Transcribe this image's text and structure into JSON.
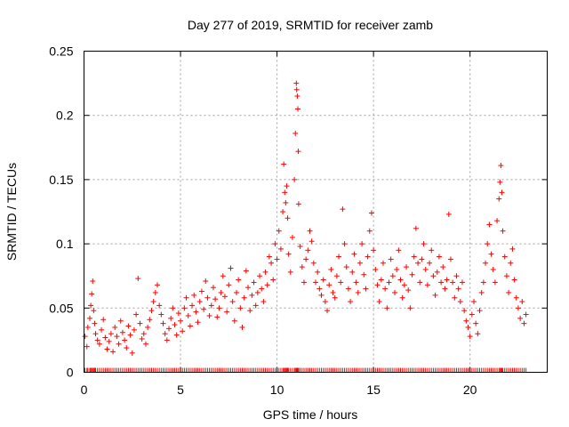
{
  "chart_data": {
    "type": "scatter",
    "title": "Day 277 of 2019, SRMTID for receiver zamb",
    "xlabel": "GPS time / hours",
    "ylabel": "SRMTID / TECUs",
    "xlim": [
      0,
      24
    ],
    "ylim": [
      0,
      0.25
    ],
    "x_ticks": [
      0,
      5,
      10,
      15,
      20
    ],
    "x_tick_labels": [
      "0",
      "5",
      "10",
      "15",
      "20"
    ],
    "y_ticks": [
      0,
      0.05,
      0.1,
      0.15,
      0.2,
      0.25
    ],
    "y_tick_labels": [
      "0",
      "0.05",
      "0.1",
      "0.15",
      "0.2",
      "0.25"
    ],
    "grid": true,
    "marker": "plus",
    "series": [
      {
        "name": "SRMTID",
        "color": "#ff0000",
        "points_xy": [
          [
            0.05,
            0.028
          ],
          [
            0.15,
            0.02
          ],
          [
            0.2,
            0.035
          ],
          [
            0.3,
            0.042
          ],
          [
            0.35,
            0.052
          ],
          [
            0.4,
            0.061
          ],
          [
            0.45,
            0.071
          ],
          [
            0.5,
            0.048
          ],
          [
            0.55,
            0.038
          ],
          [
            0.6,
            0.03
          ],
          [
            0.7,
            0.025
          ],
          [
            0.8,
            0.022
          ],
          [
            0.9,
            0.033
          ],
          [
            1.0,
            0.041
          ],
          [
            1.1,
            0.027
          ],
          [
            1.2,
            0.018
          ],
          [
            1.3,
            0.024
          ],
          [
            1.4,
            0.03
          ],
          [
            1.5,
            0.016
          ],
          [
            1.6,
            0.035
          ],
          [
            1.7,
            0.028
          ],
          [
            1.8,
            0.022
          ],
          [
            1.9,
            0.04
          ],
          [
            2.0,
            0.031
          ],
          [
            2.1,
            0.025
          ],
          [
            2.2,
            0.019
          ],
          [
            2.3,
            0.036
          ],
          [
            2.4,
            0.029
          ],
          [
            2.5,
            0.015
          ],
          [
            2.6,
            0.033
          ],
          [
            2.7,
            0.045
          ],
          [
            2.8,
            0.073
          ],
          [
            2.9,
            0.038
          ],
          [
            3.0,
            0.026
          ],
          [
            3.1,
            0.03
          ],
          [
            3.2,
            0.022
          ],
          [
            3.3,
            0.035
          ],
          [
            3.4,
            0.041
          ],
          [
            3.5,
            0.048
          ],
          [
            3.6,
            0.055
          ],
          [
            3.7,
            0.062
          ],
          [
            3.8,
            0.068
          ],
          [
            3.9,
            0.052
          ],
          [
            4.0,
            0.045
          ],
          [
            4.1,
            0.038
          ],
          [
            4.2,
            0.03
          ],
          [
            4.3,
            0.025
          ],
          [
            4.4,
            0.034
          ],
          [
            4.5,
            0.042
          ],
          [
            4.6,
            0.05
          ],
          [
            4.7,
            0.037
          ],
          [
            4.8,
            0.029
          ],
          [
            4.9,
            0.046
          ],
          [
            5.0,
            0.04
          ],
          [
            5.1,
            0.032
          ],
          [
            5.2,
            0.05
          ],
          [
            5.3,
            0.058
          ],
          [
            5.4,
            0.044
          ],
          [
            5.5,
            0.036
          ],
          [
            5.6,
            0.052
          ],
          [
            5.7,
            0.06
          ],
          [
            5.8,
            0.047
          ],
          [
            5.9,
            0.039
          ],
          [
            6.0,
            0.055
          ],
          [
            6.1,
            0.063
          ],
          [
            6.2,
            0.049
          ],
          [
            6.3,
            0.071
          ],
          [
            6.4,
            0.058
          ],
          [
            6.5,
            0.044
          ],
          [
            6.6,
            0.052
          ],
          [
            6.7,
            0.066
          ],
          [
            6.8,
            0.057
          ],
          [
            6.9,
            0.043
          ],
          [
            7.0,
            0.05
          ],
          [
            7.1,
            0.062
          ],
          [
            7.2,
            0.075
          ],
          [
            7.3,
            0.059
          ],
          [
            7.4,
            0.047
          ],
          [
            7.5,
            0.068
          ],
          [
            7.6,
            0.081
          ],
          [
            7.7,
            0.055
          ],
          [
            7.8,
            0.04
          ],
          [
            7.9,
            0.062
          ],
          [
            8.0,
            0.072
          ],
          [
            8.1,
            0.05
          ],
          [
            8.2,
            0.035
          ],
          [
            8.3,
            0.058
          ],
          [
            8.4,
            0.079
          ],
          [
            8.5,
            0.066
          ],
          [
            8.6,
            0.048
          ],
          [
            8.7,
            0.06
          ],
          [
            8.8,
            0.07
          ],
          [
            8.9,
            0.052
          ],
          [
            9.0,
            0.062
          ],
          [
            9.1,
            0.075
          ],
          [
            9.2,
            0.065
          ],
          [
            9.3,
            0.055
          ],
          [
            9.4,
            0.078
          ],
          [
            9.5,
            0.068
          ],
          [
            9.6,
            0.09
          ],
          [
            9.7,
            0.085
          ],
          [
            9.8,
            0.072
          ],
          [
            9.9,
            0.1
          ],
          [
            10.0,
            0.088
          ],
          [
            10.1,
            0.11
          ],
          [
            10.2,
            0.096
          ],
          [
            10.3,
            0.125
          ],
          [
            10.35,
            0.162
          ],
          [
            10.4,
            0.14
          ],
          [
            10.45,
            0.132
          ],
          [
            10.5,
            0.145
          ],
          [
            10.55,
            0.12
          ],
          [
            10.6,
            0.092
          ],
          [
            10.7,
            0.078
          ],
          [
            10.8,
            0.105
          ],
          [
            10.9,
            0.15
          ],
          [
            10.95,
            0.186
          ],
          [
            11.0,
            0.225
          ],
          [
            11.02,
            0.22
          ],
          [
            11.05,
            0.215
          ],
          [
            11.08,
            0.205
          ],
          [
            11.1,
            0.172
          ],
          [
            11.12,
            0.131
          ],
          [
            11.2,
            0.098
          ],
          [
            11.3,
            0.082
          ],
          [
            11.4,
            0.07
          ],
          [
            11.5,
            0.088
          ],
          [
            11.6,
            0.095
          ],
          [
            11.7,
            0.11
          ],
          [
            11.8,
            0.102
          ],
          [
            11.9,
            0.085
          ],
          [
            12.0,
            0.07
          ],
          [
            12.1,
            0.078
          ],
          [
            12.2,
            0.065
          ],
          [
            12.3,
            0.06
          ],
          [
            12.4,
            0.072
          ],
          [
            12.5,
            0.055
          ],
          [
            12.6,
            0.048
          ],
          [
            12.7,
            0.068
          ],
          [
            12.8,
            0.08
          ],
          [
            12.9,
            0.062
          ],
          [
            13.0,
            0.058
          ],
          [
            13.1,
            0.075
          ],
          [
            13.2,
            0.09
          ],
          [
            13.3,
            0.07
          ],
          [
            13.4,
            0.127
          ],
          [
            13.5,
            0.1
          ],
          [
            13.6,
            0.082
          ],
          [
            13.7,
            0.065
          ],
          [
            13.8,
            0.055
          ],
          [
            13.9,
            0.078
          ],
          [
            14.0,
            0.092
          ],
          [
            14.1,
            0.07
          ],
          [
            14.2,
            0.062
          ],
          [
            14.3,
            0.085
          ],
          [
            14.4,
            0.1
          ],
          [
            14.5,
            0.076
          ],
          [
            14.6,
            0.065
          ],
          [
            14.7,
            0.09
          ],
          [
            14.8,
            0.11
          ],
          [
            14.9,
            0.124
          ],
          [
            15.0,
            0.095
          ],
          [
            15.1,
            0.08
          ],
          [
            15.2,
            0.068
          ],
          [
            15.3,
            0.055
          ],
          [
            15.4,
            0.072
          ],
          [
            15.5,
            0.085
          ],
          [
            15.6,
            0.065
          ],
          [
            15.7,
            0.05
          ],
          [
            15.8,
            0.07
          ],
          [
            15.9,
            0.088
          ],
          [
            16.0,
            0.075
          ],
          [
            16.1,
            0.062
          ],
          [
            16.2,
            0.08
          ],
          [
            16.3,
            0.095
          ],
          [
            16.4,
            0.072
          ],
          [
            16.5,
            0.058
          ],
          [
            16.6,
            0.068
          ],
          [
            16.7,
            0.082
          ],
          [
            16.8,
            0.064
          ],
          [
            16.9,
            0.05
          ],
          [
            17.0,
            0.076
          ],
          [
            17.1,
            0.09
          ],
          [
            17.2,
            0.112
          ],
          [
            17.3,
            0.085
          ],
          [
            17.4,
            0.07
          ],
          [
            17.5,
            0.088
          ],
          [
            17.6,
            0.1
          ],
          [
            17.7,
            0.08
          ],
          [
            17.8,
            0.068
          ],
          [
            17.9,
            0.085
          ],
          [
            18.0,
            0.095
          ],
          [
            18.1,
            0.075
          ],
          [
            18.2,
            0.06
          ],
          [
            18.3,
            0.078
          ],
          [
            18.4,
            0.09
          ],
          [
            18.5,
            0.07
          ],
          [
            18.6,
            0.082
          ],
          [
            18.7,
            0.065
          ],
          [
            18.8,
            0.072
          ],
          [
            18.9,
            0.123
          ],
          [
            19.0,
            0.088
          ],
          [
            19.1,
            0.07
          ],
          [
            19.2,
            0.058
          ],
          [
            19.3,
            0.075
          ],
          [
            19.4,
            0.065
          ],
          [
            19.5,
            0.055
          ],
          [
            19.6,
            0.07
          ],
          [
            19.7,
            0.048
          ],
          [
            19.8,
            0.04
          ],
          [
            19.9,
            0.035
          ],
          [
            20.0,
            0.028
          ],
          [
            20.1,
            0.045
          ],
          [
            20.2,
            0.055
          ],
          [
            20.3,
            0.038
          ],
          [
            20.4,
            0.03
          ],
          [
            20.5,
            0.048
          ],
          [
            20.6,
            0.062
          ],
          [
            20.7,
            0.07
          ],
          [
            20.8,
            0.085
          ],
          [
            20.9,
            0.1
          ],
          [
            21.0,
            0.115
          ],
          [
            21.1,
            0.092
          ],
          [
            21.2,
            0.08
          ],
          [
            21.3,
            0.07
          ],
          [
            21.4,
            0.118
          ],
          [
            21.5,
            0.135
          ],
          [
            21.55,
            0.148
          ],
          [
            21.6,
            0.161
          ],
          [
            21.65,
            0.14
          ],
          [
            21.7,
            0.11
          ],
          [
            21.8,
            0.09
          ],
          [
            21.9,
            0.075
          ],
          [
            22.0,
            0.062
          ],
          [
            22.1,
            0.085
          ],
          [
            22.2,
            0.096
          ],
          [
            22.3,
            0.072
          ],
          [
            22.4,
            0.058
          ],
          [
            22.5,
            0.05
          ],
          [
            22.6,
            0.042
          ],
          [
            22.7,
            0.055
          ],
          [
            22.8,
            0.038
          ],
          [
            22.9,
            0.045
          ]
        ]
      }
    ]
  }
}
